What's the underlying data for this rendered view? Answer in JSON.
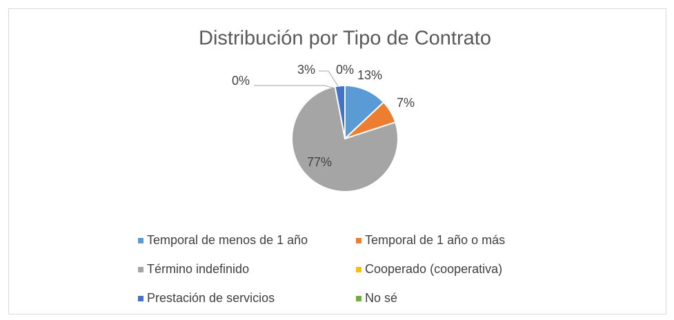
{
  "chart_data": {
    "type": "pie",
    "title": "Distribución por Tipo de Contrato",
    "categories": [
      "Temporal de menos de 1 año",
      "Temporal de 1 año o más",
      "Término indefinido",
      "Cooperado (cooperativa)",
      "Prestación de servicios",
      "No sé"
    ],
    "values": [
      13,
      7,
      77,
      0,
      3,
      0
    ],
    "value_labels": [
      "13%",
      "7%",
      "77%",
      "0%",
      "3%",
      "0%"
    ],
    "colors": [
      "#5b9bd5",
      "#ed7d31",
      "#a5a5a5",
      "#ffc000",
      "#4472c4",
      "#70ad47"
    ],
    "legend": "bottom"
  }
}
